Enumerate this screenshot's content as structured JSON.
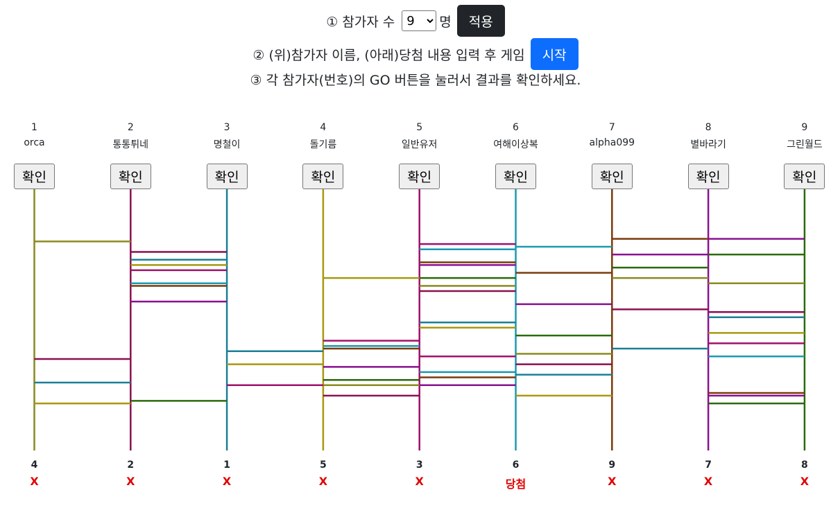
{
  "controls": {
    "step1_prefix": "① 참가자 수",
    "step1_select_value": "9",
    "step1_options": [
      "9"
    ],
    "step1_suffix": "명",
    "apply_label": "적용",
    "step2_text": "② (위)참가자 이름, (아래)당첨 내용 입력 후 게임",
    "start_label": "시작",
    "step3_text": "③ 각 참가자(번호)의 GO 버튼을 눌러서 결과를 확인하세요."
  },
  "participants": [
    {
      "number": "1",
      "name": "orca",
      "button": "확인",
      "color": "#8a8a1e"
    },
    {
      "number": "2",
      "name": "통통튀네",
      "button": "확인",
      "color": "#8a1050"
    },
    {
      "number": "3",
      "name": "명철이",
      "button": "확인",
      "color": "#1a7f96"
    },
    {
      "number": "4",
      "name": "돌기름",
      "button": "확인",
      "color": "#a8980f"
    },
    {
      "number": "5",
      "name": "일반유저",
      "button": "확인",
      "color": "#a0106a"
    },
    {
      "number": "6",
      "name": "여해이상복",
      "button": "확인",
      "color": "#1a9ab0"
    },
    {
      "number": "7",
      "name": "alpha099",
      "button": "확인",
      "color": "#7a3a0a"
    },
    {
      "number": "8",
      "name": "별바라기",
      "button": "확인",
      "color": "#8a1090"
    },
    {
      "number": "9",
      "name": "그린월드",
      "button": "확인",
      "color": "#2a6a0a"
    }
  ],
  "results": [
    {
      "number": "4",
      "prize": "X"
    },
    {
      "number": "2",
      "prize": "X"
    },
    {
      "number": "1",
      "prize": "X"
    },
    {
      "number": "5",
      "prize": "X"
    },
    {
      "number": "3",
      "prize": "X"
    },
    {
      "number": "6",
      "prize": "당첨"
    },
    {
      "number": "9",
      "prize": "X"
    },
    {
      "number": "7",
      "prize": "X"
    },
    {
      "number": "8",
      "prize": "X"
    }
  ],
  "rungs": [
    {
      "gap": 0,
      "values": [
        0.2,
        0.65,
        0.74,
        0.82
      ]
    },
    {
      "gap": 1,
      "values": [
        0.24,
        0.27,
        0.29,
        0.31,
        0.36,
        0.37,
        0.43,
        0.81
      ]
    },
    {
      "gap": 2,
      "values": [
        0.62,
        0.67,
        0.75
      ]
    },
    {
      "gap": 3,
      "values": [
        0.34,
        0.58,
        0.6,
        0.61,
        0.68,
        0.73,
        0.75,
        0.79
      ]
    },
    {
      "gap": 4,
      "values": [
        0.21,
        0.23,
        0.28,
        0.29,
        0.34,
        0.37,
        0.39,
        0.51,
        0.53,
        0.64,
        0.7,
        0.72,
        0.75
      ]
    },
    {
      "gap": 5,
      "values": [
        0.22,
        0.32,
        0.44,
        0.56,
        0.63,
        0.67,
        0.71,
        0.79
      ]
    },
    {
      "gap": 6,
      "values": [
        0.19,
        0.25,
        0.3,
        0.34,
        0.46,
        0.61
      ]
    },
    {
      "gap": 7,
      "values": [
        0.19,
        0.25,
        0.36,
        0.47,
        0.49,
        0.55,
        0.59,
        0.64,
        0.78,
        0.79,
        0.82
      ]
    }
  ]
}
